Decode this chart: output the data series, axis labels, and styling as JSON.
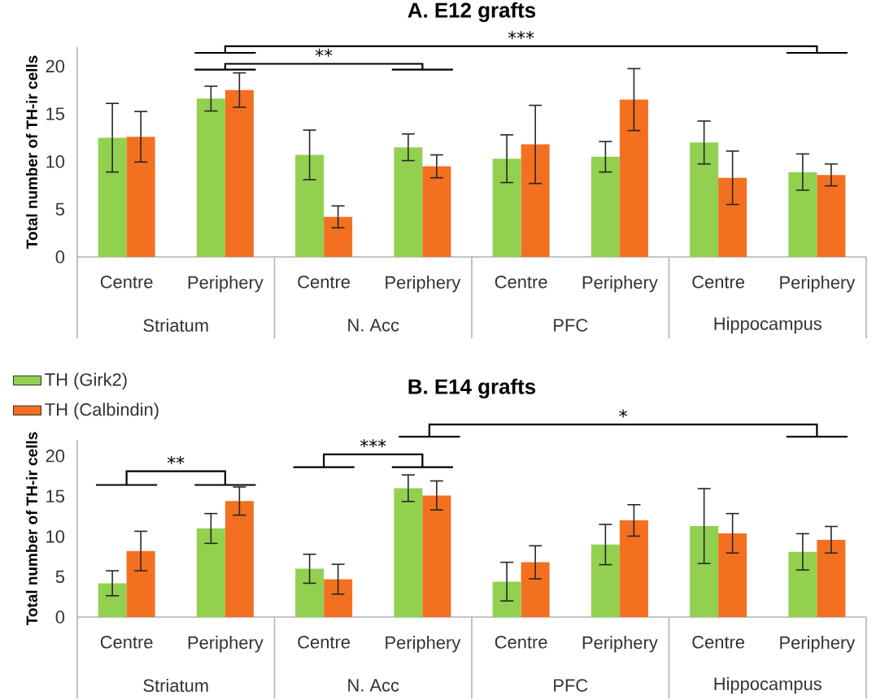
{
  "chart_data": [
    {
      "type": "bar",
      "title": "A. E12 grafts",
      "ylabel": "Total number of TH-ir cells",
      "categories": [
        "Centre",
        "Periphery",
        "Centre",
        "Periphery",
        "Centre",
        "Periphery",
        "Centre",
        "Periphery"
      ],
      "series": [
        {
          "name": "TH (Girk2)",
          "color": "#92d050",
          "values": [
            12.5,
            16.6,
            10.7,
            11.5,
            10.3,
            10.5,
            12.0,
            8.9
          ],
          "errors": [
            3.6,
            1.3,
            2.6,
            1.4,
            2.5,
            1.6,
            2.25,
            1.9
          ]
        },
        {
          "name": "TH (Calbindin)",
          "color": "#f37021",
          "values": [
            12.6,
            17.5,
            4.2,
            9.5,
            11.8,
            16.5,
            8.3,
            8.6
          ],
          "errors": [
            2.65,
            1.8,
            1.15,
            1.2,
            4.1,
            3.25,
            2.8,
            1.15
          ]
        }
      ],
      "ylim": [
        0,
        22
      ],
      "yticks": [
        0,
        5,
        10,
        15,
        20
      ],
      "legend": "bottom left",
      "annotations": [
        "Striatum",
        "N. Acc",
        "PFC",
        "Hippocampus",
        "***",
        "**"
      ]
    },
    {
      "type": "bar",
      "title": "B. E14 grafts",
      "ylabel": "Total number of TH-ir cells",
      "categories": [
        "Centre",
        "Periphery",
        "Centre",
        "Periphery",
        "Centre",
        "Periphery",
        "Centre",
        "Periphery"
      ],
      "series": [
        {
          "color": "#92d050",
          "values": [
            4.2,
            11.0,
            6.0,
            16.0,
            4.4,
            9.0,
            11.3,
            8.1
          ],
          "errors": [
            1.55,
            1.85,
            1.8,
            1.65,
            2.4,
            2.5,
            4.65,
            2.25
          ]
        },
        {
          "color": "#f37021",
          "values": [
            8.2,
            14.4,
            4.7,
            15.1,
            6.8,
            12.0,
            10.4,
            9.6
          ],
          "errors": [
            2.45,
            1.75,
            1.85,
            1.8,
            2.05,
            1.95,
            2.45,
            1.65
          ]
        }
      ],
      "ylim": [
        0,
        22
      ],
      "yticks": [
        0,
        5,
        10,
        15,
        20
      ],
      "annotations": [
        "Striatum",
        "N. Acc",
        "PFC",
        "Hippocampus",
        "*",
        "***",
        "**"
      ]
    }
  ]
}
